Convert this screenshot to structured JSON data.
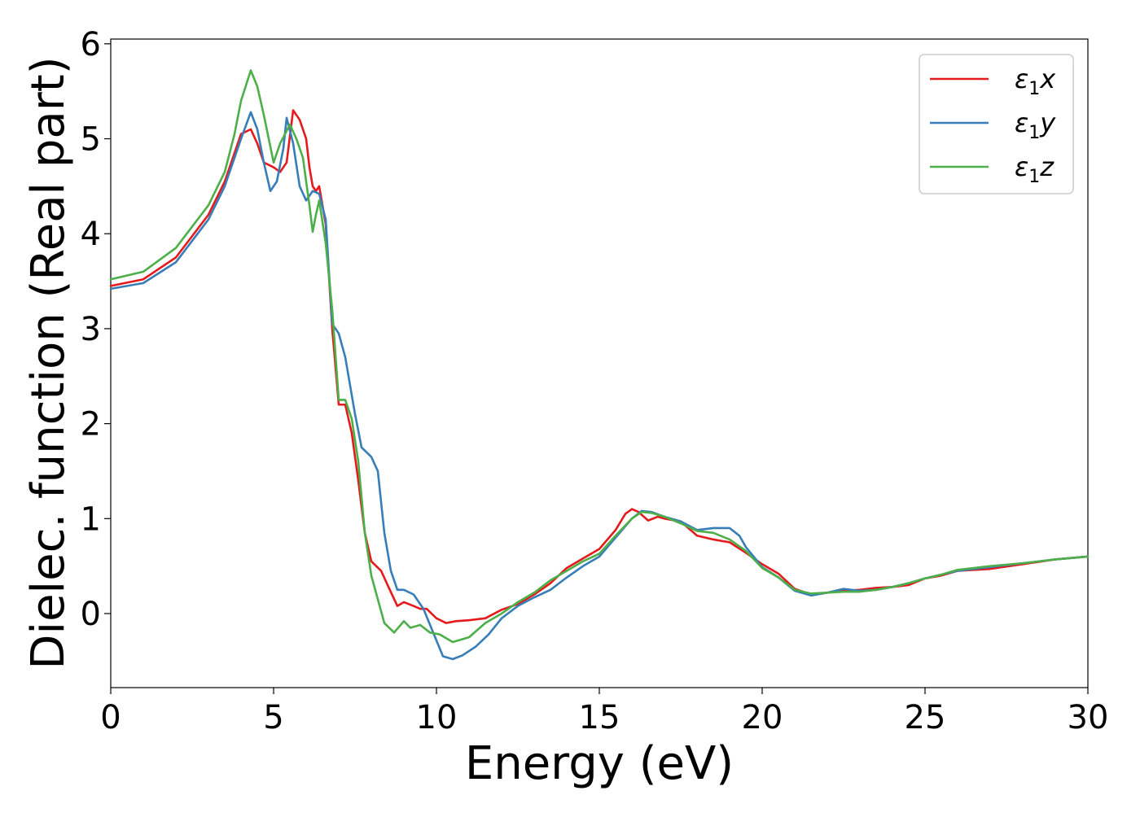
{
  "chart_data": {
    "type": "line",
    "title": "",
    "xlabel": "Energy (eV)",
    "ylabel": "Dielec. function (Real part)",
    "xlim": [
      0,
      30
    ],
    "ylim": [
      -0.78,
      6.05
    ],
    "xticks": [
      0,
      5,
      10,
      15,
      20,
      25,
      30
    ],
    "yticks": [
      0,
      1,
      2,
      3,
      4,
      5,
      6
    ],
    "grid": false,
    "legend_position": "top-right",
    "series": [
      {
        "name": "ε1x",
        "legend": {
          "base": "ε",
          "sub": "1",
          "var": "x"
        },
        "color": "#e41a1c",
        "points": [
          [
            0,
            3.45
          ],
          [
            1,
            3.52
          ],
          [
            2,
            3.75
          ],
          [
            3,
            4.2
          ],
          [
            3.5,
            4.55
          ],
          [
            4,
            5.05
          ],
          [
            4.3,
            5.1
          ],
          [
            4.5,
            4.95
          ],
          [
            4.7,
            4.75
          ],
          [
            5.0,
            4.7
          ],
          [
            5.2,
            4.65
          ],
          [
            5.4,
            4.75
          ],
          [
            5.6,
            5.3
          ],
          [
            5.8,
            5.2
          ],
          [
            6.0,
            5.0
          ],
          [
            6.1,
            4.7
          ],
          [
            6.2,
            4.5
          ],
          [
            6.3,
            4.45
          ],
          [
            6.4,
            4.5
          ],
          [
            6.6,
            4.1
          ],
          [
            6.8,
            3.0
          ],
          [
            7.0,
            2.2
          ],
          [
            7.2,
            2.2
          ],
          [
            7.4,
            1.9
          ],
          [
            7.6,
            1.4
          ],
          [
            7.8,
            0.85
          ],
          [
            8.0,
            0.55
          ],
          [
            8.3,
            0.45
          ],
          [
            8.5,
            0.3
          ],
          [
            8.8,
            0.08
          ],
          [
            9.0,
            0.12
          ],
          [
            9.3,
            0.08
          ],
          [
            9.5,
            0.05
          ],
          [
            9.7,
            0.05
          ],
          [
            10.0,
            -0.05
          ],
          [
            10.3,
            -0.1
          ],
          [
            10.6,
            -0.08
          ],
          [
            11.0,
            -0.07
          ],
          [
            11.5,
            -0.05
          ],
          [
            12.0,
            0.04
          ],
          [
            12.5,
            0.1
          ],
          [
            13.0,
            0.2
          ],
          [
            13.5,
            0.32
          ],
          [
            14.0,
            0.48
          ],
          [
            14.5,
            0.58
          ],
          [
            15.0,
            0.68
          ],
          [
            15.5,
            0.88
          ],
          [
            15.8,
            1.05
          ],
          [
            16.0,
            1.1
          ],
          [
            16.2,
            1.07
          ],
          [
            16.5,
            0.98
          ],
          [
            16.8,
            1.02
          ],
          [
            17.0,
            1.0
          ],
          [
            17.5,
            0.97
          ],
          [
            18.0,
            0.82
          ],
          [
            18.5,
            0.78
          ],
          [
            19.0,
            0.75
          ],
          [
            19.5,
            0.64
          ],
          [
            20.0,
            0.52
          ],
          [
            20.5,
            0.42
          ],
          [
            21.0,
            0.26
          ],
          [
            21.5,
            0.2
          ],
          [
            22.0,
            0.22
          ],
          [
            22.5,
            0.24
          ],
          [
            23.0,
            0.25
          ],
          [
            23.5,
            0.27
          ],
          [
            24.0,
            0.28
          ],
          [
            24.5,
            0.3
          ],
          [
            25.0,
            0.37
          ],
          [
            25.5,
            0.4
          ],
          [
            26.0,
            0.45
          ],
          [
            27.0,
            0.47
          ],
          [
            28.0,
            0.52
          ],
          [
            29.0,
            0.57
          ],
          [
            30.0,
            0.6
          ]
        ]
      },
      {
        "name": "ε1y",
        "legend": {
          "base": "ε",
          "sub": "1",
          "var": "y"
        },
        "color": "#377eb8",
        "points": [
          [
            0,
            3.42
          ],
          [
            1,
            3.48
          ],
          [
            2,
            3.7
          ],
          [
            3,
            4.15
          ],
          [
            3.5,
            4.5
          ],
          [
            4,
            5.0
          ],
          [
            4.3,
            5.28
          ],
          [
            4.5,
            5.1
          ],
          [
            4.7,
            4.75
          ],
          [
            4.9,
            4.45
          ],
          [
            5.1,
            4.55
          ],
          [
            5.3,
            4.9
          ],
          [
            5.4,
            5.22
          ],
          [
            5.6,
            4.95
          ],
          [
            5.8,
            4.5
          ],
          [
            6.0,
            4.35
          ],
          [
            6.2,
            4.45
          ],
          [
            6.4,
            4.42
          ],
          [
            6.6,
            4.15
          ],
          [
            6.8,
            3.05
          ],
          [
            7.0,
            2.95
          ],
          [
            7.2,
            2.7
          ],
          [
            7.5,
            2.1
          ],
          [
            7.7,
            1.75
          ],
          [
            8.0,
            1.65
          ],
          [
            8.2,
            1.5
          ],
          [
            8.4,
            0.85
          ],
          [
            8.6,
            0.45
          ],
          [
            8.8,
            0.25
          ],
          [
            9.0,
            0.25
          ],
          [
            9.3,
            0.2
          ],
          [
            9.6,
            0.05
          ],
          [
            9.9,
            -0.2
          ],
          [
            10.2,
            -0.45
          ],
          [
            10.5,
            -0.48
          ],
          [
            10.8,
            -0.44
          ],
          [
            11.2,
            -0.35
          ],
          [
            11.6,
            -0.22
          ],
          [
            12.0,
            -0.05
          ],
          [
            12.5,
            0.08
          ],
          [
            13.0,
            0.17
          ],
          [
            13.5,
            0.25
          ],
          [
            14.0,
            0.38
          ],
          [
            14.5,
            0.5
          ],
          [
            15.0,
            0.6
          ],
          [
            15.5,
            0.8
          ],
          [
            16.0,
            1.0
          ],
          [
            16.3,
            1.08
          ],
          [
            16.6,
            1.07
          ],
          [
            17.0,
            1.02
          ],
          [
            17.5,
            0.97
          ],
          [
            18.0,
            0.88
          ],
          [
            18.5,
            0.9
          ],
          [
            19.0,
            0.9
          ],
          [
            19.3,
            0.82
          ],
          [
            19.5,
            0.7
          ],
          [
            20.0,
            0.49
          ],
          [
            20.5,
            0.38
          ],
          [
            21.0,
            0.24
          ],
          [
            21.5,
            0.19
          ],
          [
            22.0,
            0.22
          ],
          [
            22.5,
            0.26
          ],
          [
            23.0,
            0.24
          ],
          [
            23.5,
            0.25
          ],
          [
            24.0,
            0.28
          ],
          [
            24.5,
            0.32
          ],
          [
            25.0,
            0.37
          ],
          [
            25.5,
            0.41
          ],
          [
            26.0,
            0.45
          ],
          [
            27.0,
            0.49
          ],
          [
            28.0,
            0.53
          ],
          [
            29.0,
            0.57
          ],
          [
            30.0,
            0.6
          ]
        ]
      },
      {
        "name": "ε1z",
        "legend": {
          "base": "ε",
          "sub": "1",
          "var": "z"
        },
        "color": "#4daf4a",
        "points": [
          [
            0,
            3.52
          ],
          [
            1,
            3.6
          ],
          [
            2,
            3.85
          ],
          [
            3,
            4.3
          ],
          [
            3.5,
            4.65
          ],
          [
            3.8,
            5.05
          ],
          [
            4.0,
            5.4
          ],
          [
            4.3,
            5.72
          ],
          [
            4.5,
            5.55
          ],
          [
            4.7,
            5.25
          ],
          [
            5.0,
            4.75
          ],
          [
            5.2,
            4.95
          ],
          [
            5.5,
            5.15
          ],
          [
            5.7,
            5.0
          ],
          [
            5.9,
            4.8
          ],
          [
            6.1,
            4.3
          ],
          [
            6.2,
            4.02
          ],
          [
            6.3,
            4.2
          ],
          [
            6.4,
            4.35
          ],
          [
            6.6,
            3.9
          ],
          [
            6.8,
            3.2
          ],
          [
            7.0,
            2.25
          ],
          [
            7.2,
            2.25
          ],
          [
            7.4,
            2.05
          ],
          [
            7.6,
            1.6
          ],
          [
            7.8,
            0.85
          ],
          [
            8.0,
            0.4
          ],
          [
            8.2,
            0.15
          ],
          [
            8.4,
            -0.1
          ],
          [
            8.7,
            -0.2
          ],
          [
            9.0,
            -0.08
          ],
          [
            9.2,
            -0.15
          ],
          [
            9.5,
            -0.12
          ],
          [
            9.8,
            -0.2
          ],
          [
            10.1,
            -0.22
          ],
          [
            10.5,
            -0.3
          ],
          [
            11.0,
            -0.25
          ],
          [
            11.5,
            -0.1
          ],
          [
            12.0,
            0.0
          ],
          [
            12.5,
            0.12
          ],
          [
            13.0,
            0.22
          ],
          [
            13.5,
            0.35
          ],
          [
            14.0,
            0.45
          ],
          [
            14.5,
            0.55
          ],
          [
            15.0,
            0.63
          ],
          [
            15.5,
            0.82
          ],
          [
            16.0,
            1.0
          ],
          [
            16.3,
            1.07
          ],
          [
            16.6,
            1.06
          ],
          [
            17.0,
            1.02
          ],
          [
            17.5,
            0.95
          ],
          [
            18.0,
            0.87
          ],
          [
            18.5,
            0.85
          ],
          [
            19.0,
            0.78
          ],
          [
            19.5,
            0.66
          ],
          [
            20.0,
            0.48
          ],
          [
            20.5,
            0.38
          ],
          [
            21.0,
            0.25
          ],
          [
            21.5,
            0.21
          ],
          [
            22.0,
            0.22
          ],
          [
            22.5,
            0.23
          ],
          [
            23.0,
            0.23
          ],
          [
            23.5,
            0.25
          ],
          [
            24.0,
            0.28
          ],
          [
            24.5,
            0.32
          ],
          [
            25.0,
            0.37
          ],
          [
            25.5,
            0.41
          ],
          [
            26.0,
            0.46
          ],
          [
            27.0,
            0.5
          ],
          [
            28.0,
            0.53
          ],
          [
            29.0,
            0.57
          ],
          [
            30.0,
            0.6
          ]
        ]
      }
    ]
  }
}
